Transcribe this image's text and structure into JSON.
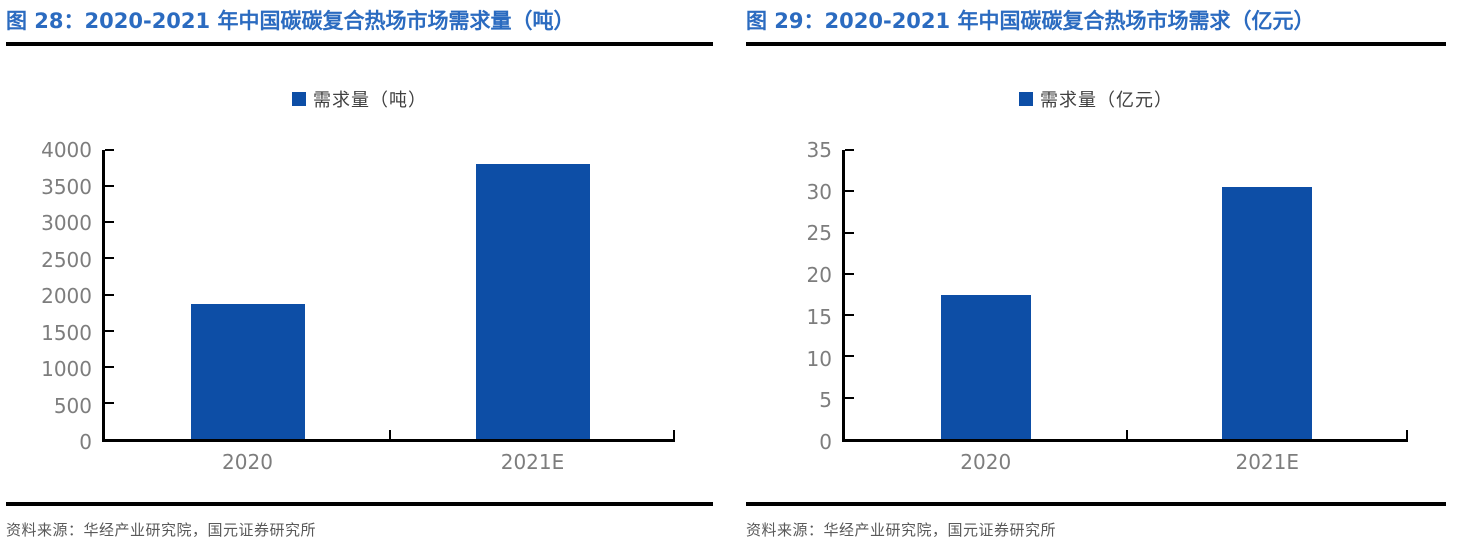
{
  "colors": {
    "title_blue": "#2b6bc0",
    "bar_blue": "#0d4ea6",
    "axis_black": "#000000",
    "tick_label_gray": "#7d7d7d",
    "legend_text_gray": "#404040",
    "source_text_gray": "#595959"
  },
  "chart_data": [
    {
      "type": "bar",
      "title": "图 28：2020-2021 年中国碳碳复合热场市场需求量（吨）",
      "legend": "需求量（吨）",
      "legend_position": "top-center",
      "categories": [
        "2020",
        "2021E"
      ],
      "values": [
        1870,
        3800
      ],
      "xlabel": "",
      "ylabel": "",
      "ylim": [
        0,
        4000
      ],
      "ytick_step": 500,
      "ytick_labels": [
        "4000",
        "3500",
        "3000",
        "2500",
        "2000",
        "1500",
        "1000",
        "500",
        "0"
      ],
      "grid": false,
      "bar_width_frac": 0.2,
      "bar_centers_frac": [
        0.25,
        0.75
      ],
      "source": "资料来源：华经产业研究院，国元证券研究所"
    },
    {
      "type": "bar",
      "title": "图 29：2020-2021 年中国碳碳复合热场市场需求（亿元）",
      "legend": "需求量（亿元）",
      "legend_position": "top-center",
      "categories": [
        "2020",
        "2021E"
      ],
      "values": [
        17.5,
        30.5
      ],
      "xlabel": "",
      "ylabel": "",
      "ylim": [
        0,
        35
      ],
      "ytick_step": 5,
      "ytick_labels": [
        "35",
        "30",
        "25",
        "20",
        "15",
        "10",
        "5",
        "0"
      ],
      "grid": false,
      "bar_width_frac": 0.16,
      "bar_centers_frac": [
        0.25,
        0.75
      ],
      "source": "资料来源：华经产业研究院，国元证券研究所"
    }
  ]
}
